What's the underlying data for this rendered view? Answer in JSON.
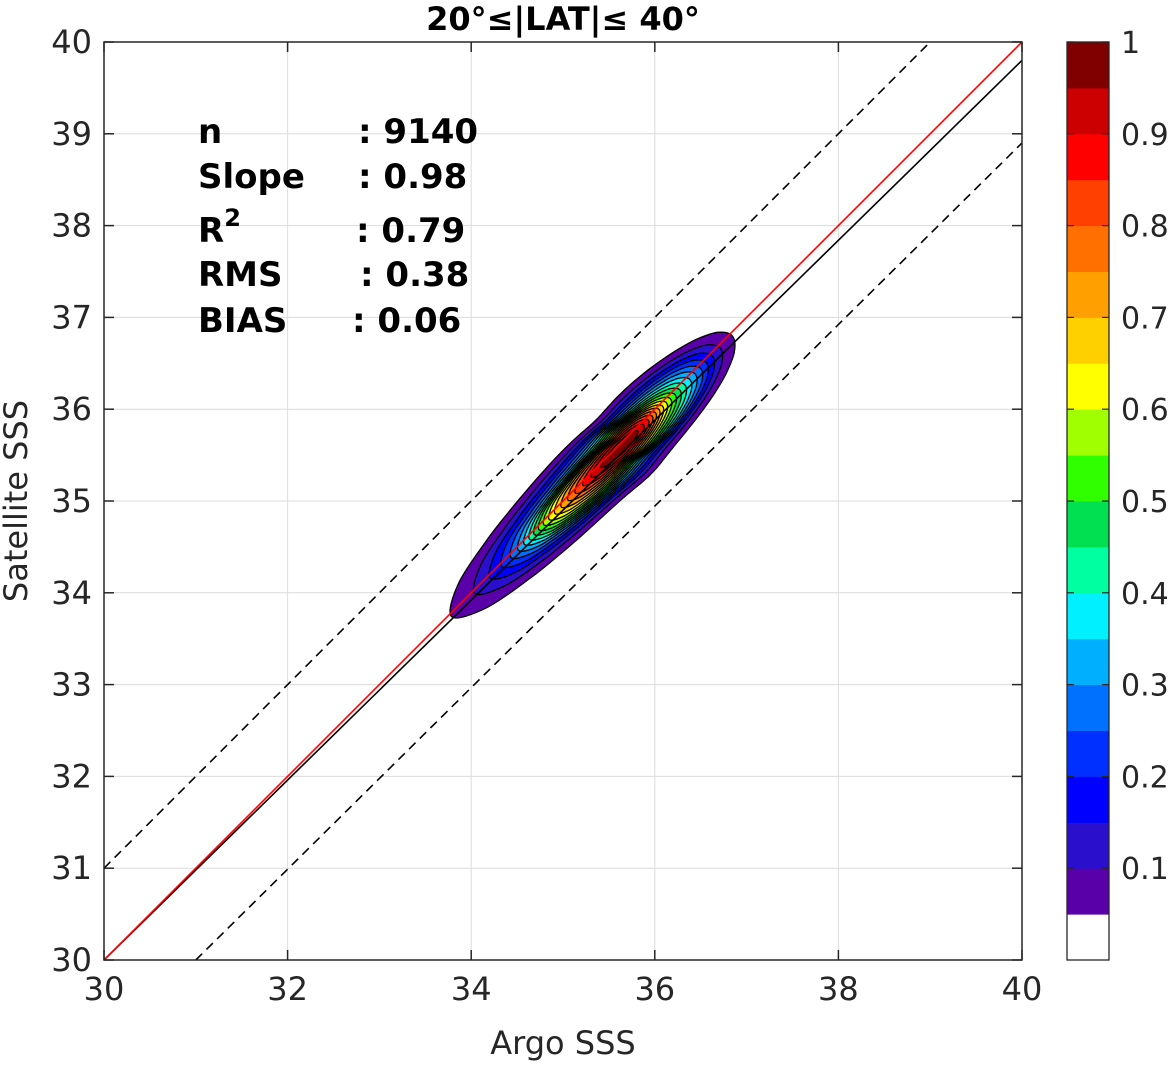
{
  "chart_data": {
    "type": "contour",
    "title": "20°≤|LAT|≤ 40°",
    "xlabel": "Argo SSS",
    "ylabel": "Satellite SSS",
    "xlim": [
      30,
      40
    ],
    "ylim": [
      30,
      40
    ],
    "x_ticks": [
      "30",
      "32",
      "34",
      "36",
      "38",
      "40"
    ],
    "y_ticks": [
      "30",
      "31",
      "32",
      "33",
      "34",
      "35",
      "36",
      "37",
      "38",
      "39",
      "40"
    ],
    "grid": true,
    "stats": [
      {
        "label": "n",
        "value": ": 9140"
      },
      {
        "label": "Slope",
        "value": ": 0.98"
      },
      {
        "label": "R",
        "sup": "2",
        "value": ": 0.79"
      },
      {
        "label": "RMS",
        "value": ": 0.38"
      },
      {
        "label": "BIAS",
        "value": ": 0.06"
      }
    ],
    "lines": [
      {
        "kind": "one-to-one",
        "color": "#ff0000",
        "points": [
          [
            30,
            30
          ],
          [
            40,
            40
          ]
        ]
      },
      {
        "kind": "regression",
        "color": "#000000",
        "points": [
          [
            30,
            30
          ],
          [
            40,
            39.8
          ]
        ]
      },
      {
        "kind": "upper-bound-dashed",
        "color": "#000000",
        "points": [
          [
            30,
            31
          ],
          [
            40,
            41
          ]
        ]
      },
      {
        "kind": "lower-bound-dashed",
        "color": "#000000",
        "points": [
          [
            31,
            30
          ],
          [
            40,
            38.9
          ]
        ]
      }
    ],
    "density_peak": [
      35.65,
      35.6
    ],
    "density_levels": [
      0.05,
      0.1,
      0.15,
      0.2,
      0.25,
      0.3,
      0.35,
      0.4,
      0.45,
      0.5,
      0.55,
      0.6,
      0.65,
      0.7,
      0.75,
      0.8,
      0.85,
      0.9,
      0.95
    ],
    "colorbar": {
      "range": [
        0,
        1
      ],
      "tick_labels": [
        "1",
        "0.9",
        "0.8",
        "0.7",
        "0.6",
        "0.5",
        "0.4",
        "0.3",
        "0.2",
        "0.1"
      ],
      "tick_values": [
        1,
        0.9,
        0.8,
        0.7,
        0.6,
        0.5,
        0.4,
        0.3,
        0.2,
        0.1
      ],
      "colors": [
        "#ffffff",
        "#5a00a8",
        "#2a10cc",
        "#0000ff",
        "#0030ff",
        "#0070ff",
        "#00b0ff",
        "#00f0ff",
        "#00ffa0",
        "#00e050",
        "#30ff00",
        "#a0ff00",
        "#ffff00",
        "#ffd000",
        "#ffa000",
        "#ff7000",
        "#ff4000",
        "#ff0000",
        "#cc0000",
        "#800000"
      ]
    }
  }
}
